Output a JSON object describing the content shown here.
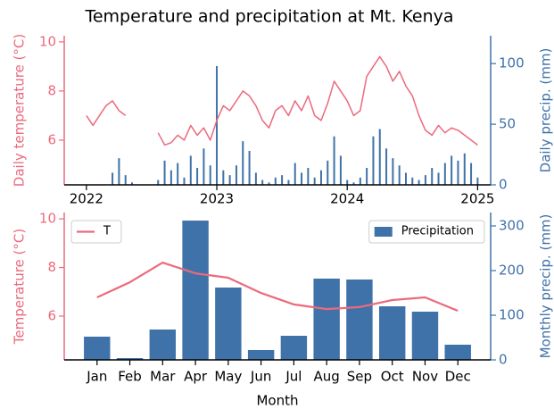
{
  "chart_data": [
    {
      "type": "combo",
      "title": "Temperature and precipitation at Mt. Kenya",
      "ylabel": "Daily temperature (°C)",
      "y2label": "Daily precip. (mm)",
      "x": [
        2022.0,
        2022.05,
        2022.1,
        2022.15,
        2022.2,
        2022.25,
        2022.3,
        2022.35,
        2022.4,
        2022.45,
        2022.5,
        2022.55,
        2022.6,
        2022.65,
        2022.7,
        2022.75,
        2022.8,
        2022.85,
        2022.9,
        2022.95,
        2023.0,
        2023.05,
        2023.1,
        2023.15,
        2023.2,
        2023.25,
        2023.3,
        2023.35,
        2023.4,
        2023.45,
        2023.5,
        2023.55,
        2023.6,
        2023.65,
        2023.7,
        2023.75,
        2023.8,
        2023.85,
        2023.9,
        2023.95,
        2024.0,
        2024.05,
        2024.1,
        2024.15,
        2024.2,
        2024.25,
        2024.3,
        2024.35,
        2024.4,
        2024.45,
        2024.5,
        2024.55,
        2024.6,
        2024.65,
        2024.7,
        2024.75,
        2024.8,
        2024.85,
        2024.9,
        2024.95,
        2025.0
      ],
      "xlim": [
        2021.83,
        2025.1
      ],
      "xticks": [
        2022,
        2023,
        2024,
        2025
      ],
      "ylim": [
        4.18,
        10.25
      ],
      "yticks": [
        6,
        8,
        10
      ],
      "y2lim": [
        0,
        123
      ],
      "y2ticks": [
        0,
        50,
        100
      ],
      "series": [
        {
          "kind": "line",
          "color": "#ec6a7d",
          "values": [
            7.0,
            6.6,
            7.0,
            7.4,
            7.6,
            7.2,
            7.0,
            null,
            null,
            null,
            null,
            6.3,
            5.8,
            5.9,
            6.2,
            6.0,
            6.6,
            6.2,
            6.5,
            6.0,
            6.8,
            7.4,
            7.2,
            7.6,
            8.0,
            7.8,
            7.4,
            6.8,
            6.5,
            7.2,
            7.4,
            7.0,
            7.6,
            7.2,
            7.8,
            7.0,
            6.8,
            7.5,
            8.4,
            8.0,
            7.6,
            7.0,
            7.2,
            8.6,
            9.0,
            9.4,
            9.0,
            8.4,
            8.8,
            8.2,
            7.8,
            7.0,
            6.4,
            6.2,
            6.6,
            6.3,
            6.5,
            6.4,
            6.2,
            6.0,
            5.8
          ]
        },
        {
          "kind": "bar",
          "axis": "y2",
          "color": "#3f72a8",
          "values": [
            0,
            0,
            0,
            0,
            10,
            22,
            8,
            2,
            0,
            0,
            0,
            4,
            20,
            12,
            18,
            6,
            24,
            14,
            30,
            16,
            98,
            12,
            8,
            16,
            36,
            28,
            10,
            4,
            2,
            6,
            8,
            4,
            18,
            10,
            14,
            6,
            12,
            20,
            40,
            24,
            4,
            2,
            6,
            14,
            40,
            46,
            30,
            22,
            16,
            10,
            6,
            4,
            8,
            14,
            10,
            18,
            24,
            20,
            26,
            18,
            6
          ]
        }
      ]
    },
    {
      "type": "combo",
      "xlabel": "Month",
      "ylabel": "Temperature (°C)",
      "y2label": "Monthly precip. (mm)",
      "categories": [
        "Jan",
        "Feb",
        "Mar",
        "Apr",
        "May",
        "Jun",
        "Jul",
        "Aug",
        "Sep",
        "Oct",
        "Nov",
        "Dec"
      ],
      "ylim": [
        4.2,
        10.26
      ],
      "yticks": [
        6,
        8,
        10
      ],
      "y2lim": [
        0,
        330
      ],
      "y2ticks": [
        0,
        100,
        200,
        300
      ],
      "series": [
        {
          "name": "T",
          "kind": "line",
          "legend": "upper left",
          "color": "#ec6a7d",
          "values": [
            6.77,
            7.39,
            8.2,
            7.76,
            7.58,
            6.95,
            6.48,
            6.29,
            6.37,
            6.66,
            6.77,
            6.22
          ]
        },
        {
          "name": "Precipitation",
          "kind": "bar",
          "axis": "y2",
          "legend": "upper right",
          "color": "#3f72a8",
          "values": [
            52,
            4,
            68,
            312,
            162,
            22,
            54,
            182,
            180,
            120,
            108,
            34
          ]
        }
      ]
    }
  ]
}
